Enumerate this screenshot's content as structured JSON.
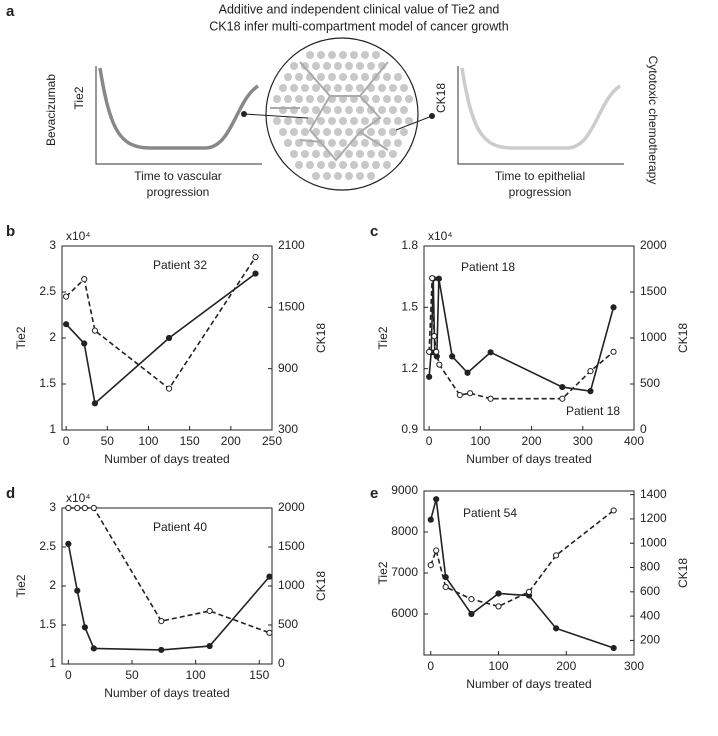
{
  "diagram": {
    "panel_label": "a",
    "title_lines": [
      "Additive and independent clinical value of Tie2 and",
      "CK18 infer multi-compartment model of cancer growth"
    ],
    "left_drug": "Bevacizumab",
    "left_axis": "Tie2",
    "left_xlabel": [
      "Time to vascular",
      "progression"
    ],
    "right_axis": "CK18",
    "right_xlabel": [
      "Time to epithelial",
      "progression"
    ],
    "right_drug": "Cytotoxic chemotherapy"
  },
  "chart_data": [
    {
      "type": "line",
      "panel_label": "b",
      "x_label": "Number of days treated",
      "y_label": "Tie2",
      "y2_label": "CK18",
      "y_multiplier": "x10⁴",
      "annotations": [
        "Patient 32"
      ],
      "xlim": [
        -5,
        250
      ],
      "xticks": [
        0,
        50,
        100,
        150,
        200,
        250
      ],
      "ylim": [
        1,
        3
      ],
      "yticks": [
        1,
        1.5,
        2,
        2.5,
        3
      ],
      "y2lim": [
        300,
        2100
      ],
      "y2ticks": [
        300,
        900,
        1500,
        2100
      ],
      "series": [
        {
          "axis": "y",
          "line_style": "solid",
          "color": "#222222",
          "x": [
            0,
            22,
            35,
            125,
            230
          ],
          "values": [
            2.15,
            1.94,
            1.29,
            2.0,
            2.7
          ]
        },
        {
          "axis": "y2",
          "line_style": "dashed",
          "color": "#222222",
          "x": [
            0,
            22,
            35,
            125,
            230
          ],
          "values": [
            1605,
            1776,
            1272,
            705,
            1992
          ]
        }
      ]
    },
    {
      "type": "line",
      "panel_label": "c",
      "x_label": "Number of days treated",
      "y_label": "Tie2",
      "y2_label": "CK18",
      "y_multiplier": "x10⁴",
      "annotations": [
        "Patient 18",
        "Patient 18"
      ],
      "xlim": [
        -10,
        400
      ],
      "xticks": [
        0,
        100,
        200,
        300,
        400
      ],
      "ylim": [
        0.9,
        1.8
      ],
      "yticks": [
        0.9,
        1.2,
        1.5,
        1.8
      ],
      "y2lim": [
        0,
        2000
      ],
      "y2ticks": [
        0,
        500,
        1000,
        1500,
        2000
      ],
      "series": [
        {
          "axis": "y",
          "line_style": "solid",
          "color": "#222222",
          "x": [
            0,
            4,
            8,
            11,
            15,
            19,
            45,
            75,
            120,
            260,
            315,
            360
          ],
          "values": [
            1.16,
            1.28,
            1.64,
            1.28,
            1.26,
            1.64,
            1.26,
            1.18,
            1.28,
            1.11,
            1.09,
            1.5
          ]
        },
        {
          "axis": "y2",
          "line_style": "dashed",
          "color": "#222222",
          "x": [
            0,
            6,
            10,
            14,
            20,
            60,
            80,
            120,
            260,
            315,
            360
          ],
          "values": [
            850,
            1650,
            1020,
            850,
            710,
            380,
            400,
            340,
            340,
            640,
            850
          ]
        }
      ]
    },
    {
      "type": "line",
      "panel_label": "d",
      "x_label": "Number of days treated",
      "y_label": "Tie2",
      "y2_label": "CK18",
      "y_multiplier": "x10⁴",
      "annotations": [
        "Patient 40"
      ],
      "xlim": [
        -5,
        160
      ],
      "xticks": [
        0,
        50,
        100,
        150
      ],
      "ylim": [
        1,
        3
      ],
      "yticks": [
        1,
        1.5,
        2,
        2.5,
        3
      ],
      "y2lim": [
        0,
        2000
      ],
      "y2ticks": [
        0,
        500,
        1000,
        1500,
        2000
      ],
      "series": [
        {
          "axis": "y",
          "line_style": "solid",
          "color": "#222222",
          "x": [
            0,
            7,
            13,
            20,
            73,
            111,
            158
          ],
          "values": [
            2.54,
            1.94,
            1.47,
            1.2,
            1.18,
            1.23,
            2.12
          ]
        },
        {
          "axis": "y2",
          "line_style": "dashed",
          "color": "#222222",
          "x": [
            0,
            7,
            13,
            20,
            73,
            111,
            158
          ],
          "values": [
            2000,
            2000,
            2000,
            2000,
            550,
            680,
            400
          ]
        }
      ]
    },
    {
      "type": "line",
      "panel_label": "e",
      "x_label": "Number of days treated",
      "y_label": "Tie2",
      "y2_label": "CK18",
      "annotations": [
        "Patient 54"
      ],
      "xlim": [
        -10,
        300
      ],
      "xticks": [
        0,
        100,
        200,
        300
      ],
      "ylim": [
        5000,
        9000
      ],
      "yticks": [
        6000,
        7000,
        8000,
        9000
      ],
      "y2lim": [
        80,
        1430
      ],
      "y2ticks": [
        200,
        400,
        600,
        800,
        1000,
        1200,
        1400
      ],
      "series": [
        {
          "axis": "y",
          "line_style": "solid",
          "color": "#222222",
          "x": [
            0,
            8,
            22,
            60,
            100,
            145,
            185,
            270
          ],
          "values": [
            8300,
            8800,
            6900,
            6000,
            6500,
            6450,
            5650,
            5170
          ]
        },
        {
          "axis": "y2",
          "line_style": "dashed",
          "color": "#222222",
          "x": [
            0,
            8,
            22,
            60,
            100,
            145,
            185,
            270
          ],
          "values": [
            820,
            940,
            640,
            540,
            480,
            600,
            900,
            1270
          ]
        }
      ]
    }
  ]
}
